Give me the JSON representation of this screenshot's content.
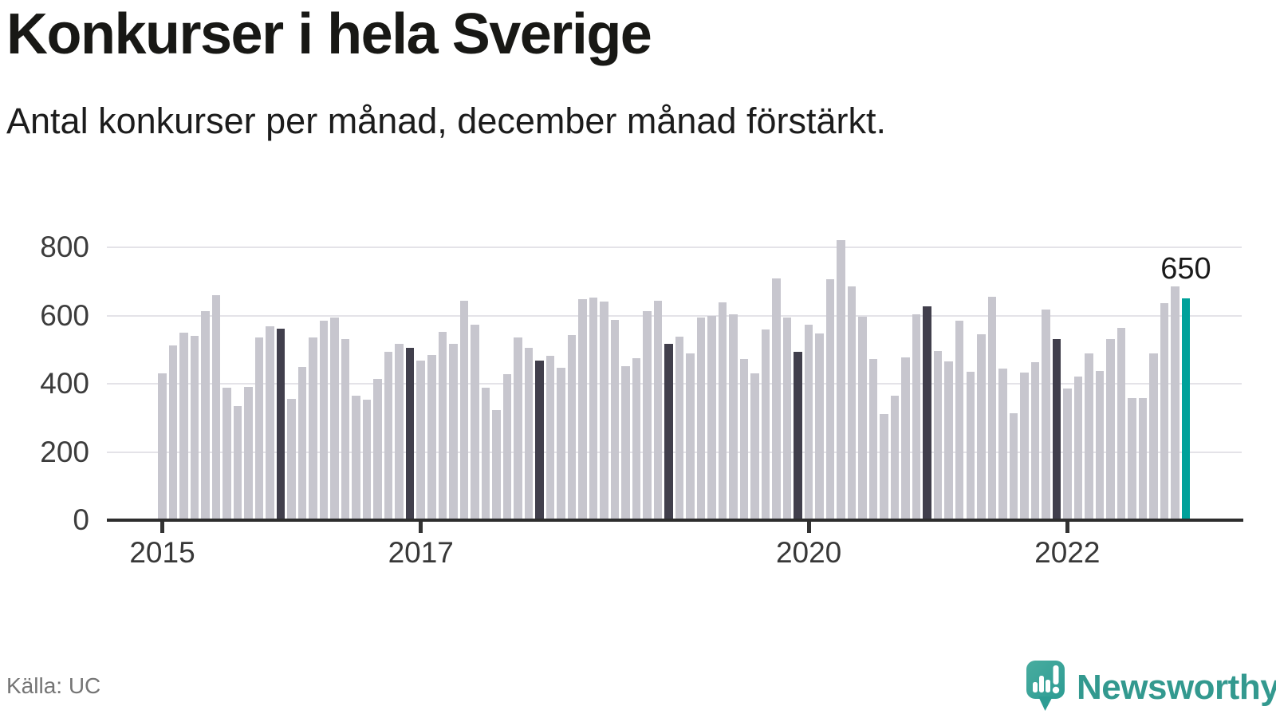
{
  "header": {
    "title": "Konkurser i hela Sverige",
    "subtitle": "Antal konkurser per månad, december månad förstärkt."
  },
  "footer": {
    "source": "Källa: UC",
    "brand_name": "Newsworthy"
  },
  "colors": {
    "bar": "#c7c6ce",
    "bar_december": "#413f4c",
    "bar_highlight": "#00a19a",
    "gridline": "#e4e3e8",
    "axis": "#2d2d2d",
    "tick": "#333333",
    "axis_label": "#3c3c3c",
    "text": "#1a1a1a",
    "source_text": "#757575",
    "brand": "#33998f"
  },
  "chart_data": {
    "type": "bar",
    "title": "Konkurser i hela Sverige",
    "xlabel": "",
    "ylabel": "",
    "x_unit": "month",
    "start": "2015-01",
    "end": "2022-12",
    "start_year": 2015,
    "ylim": [
      0,
      800
    ],
    "y_ticks": [
      0,
      200,
      400,
      600,
      800
    ],
    "x_ticks": [
      {
        "label": "2015",
        "month_index": 0
      },
      {
        "label": "2017",
        "month_index": 24
      },
      {
        "label": "2020",
        "month_index": 60
      },
      {
        "label": "2022",
        "month_index": 84
      }
    ],
    "grid": true,
    "legend": false,
    "december_emphasis": true,
    "highlight_last": {
      "value": 650,
      "label": "650"
    },
    "series": [
      {
        "name": "Antal konkurser per månad",
        "values": [
          430,
          512,
          550,
          540,
          613,
          660,
          388,
          335,
          390,
          535,
          568,
          562,
          355,
          450,
          536,
          584,
          594,
          530,
          366,
          354,
          415,
          494,
          516,
          506,
          469,
          485,
          553,
          518,
          643,
          573,
          388,
          323,
          428,
          536,
          506,
          467,
          481,
          446,
          543,
          648,
          652,
          640,
          588,
          452,
          475,
          613,
          643,
          516,
          537,
          488,
          594,
          598,
          639,
          604,
          473,
          431,
          559,
          709,
          593,
          494,
          574,
          548,
          706,
          820,
          685,
          596,
          473,
          311,
          365,
          477,
          604,
          628,
          496,
          466,
          585,
          434,
          545,
          654,
          444,
          314,
          433,
          462,
          617,
          530,
          386,
          420,
          490,
          438,
          530,
          564,
          358,
          358,
          490,
          637,
          686,
          650
        ]
      }
    ]
  }
}
